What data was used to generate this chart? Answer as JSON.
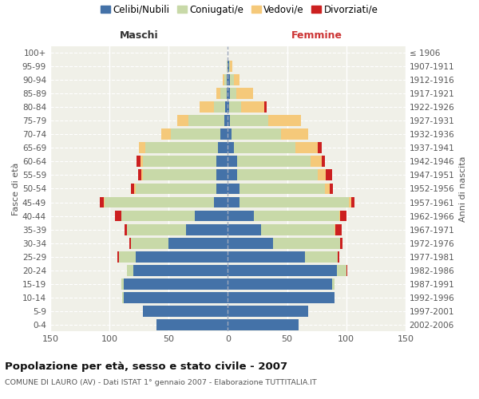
{
  "age_groups": [
    "100+",
    "95-99",
    "90-94",
    "85-89",
    "80-84",
    "75-79",
    "70-74",
    "65-69",
    "60-64",
    "55-59",
    "50-54",
    "45-49",
    "40-44",
    "35-39",
    "30-34",
    "25-29",
    "20-24",
    "15-19",
    "10-14",
    "5-9",
    "0-4"
  ],
  "birth_years": [
    "≤ 1906",
    "1907-1911",
    "1912-1916",
    "1917-1921",
    "1922-1926",
    "1927-1931",
    "1932-1936",
    "1937-1941",
    "1942-1946",
    "1947-1951",
    "1952-1956",
    "1957-1961",
    "1962-1966",
    "1967-1971",
    "1972-1976",
    "1977-1981",
    "1982-1986",
    "1987-1991",
    "1992-1996",
    "1997-2001",
    "2002-2006"
  ],
  "maschi": {
    "celibi": [
      0,
      0,
      1,
      1,
      2,
      3,
      6,
      8,
      10,
      10,
      10,
      12,
      28,
      35,
      50,
      78,
      80,
      88,
      88,
      72,
      60
    ],
    "coniugati": [
      0,
      1,
      2,
      5,
      10,
      30,
      42,
      62,
      62,
      62,
      68,
      92,
      62,
      50,
      32,
      14,
      5,
      2,
      1,
      0,
      0
    ],
    "vedovi": [
      0,
      0,
      1,
      4,
      12,
      10,
      8,
      5,
      2,
      1,
      1,
      1,
      0,
      0,
      0,
      0,
      0,
      0,
      0,
      0,
      0
    ],
    "divorziati": [
      0,
      0,
      0,
      0,
      0,
      0,
      0,
      0,
      3,
      3,
      3,
      3,
      5,
      2,
      1,
      1,
      0,
      0,
      0,
      0,
      0
    ]
  },
  "femmine": {
    "nubili": [
      0,
      1,
      2,
      2,
      1,
      2,
      3,
      5,
      8,
      8,
      10,
      10,
      22,
      28,
      38,
      65,
      92,
      88,
      90,
      68,
      60
    ],
    "coniugate": [
      0,
      1,
      3,
      5,
      10,
      32,
      42,
      52,
      62,
      68,
      72,
      92,
      72,
      62,
      57,
      28,
      8,
      2,
      0,
      0,
      0
    ],
    "vedove": [
      0,
      2,
      5,
      14,
      20,
      28,
      23,
      19,
      9,
      7,
      4,
      2,
      1,
      1,
      0,
      0,
      0,
      0,
      0,
      0,
      0
    ],
    "divorziate": [
      0,
      0,
      0,
      0,
      2,
      0,
      0,
      3,
      3,
      5,
      3,
      3,
      5,
      5,
      2,
      1,
      1,
      0,
      0,
      0,
      0
    ]
  },
  "colors": {
    "celibi": "#4472a8",
    "coniugati": "#c8d9a8",
    "vedovi": "#f5c97a",
    "divorziati": "#cc2020"
  },
  "xlim": 150,
  "title": "Popolazione per età, sesso e stato civile - 2007",
  "subtitle": "COMUNE DI LAURO (AV) - Dati ISTAT 1° gennaio 2007 - Elaborazione TUTTITALIA.IT",
  "ylabel_left": "Fasce di età",
  "ylabel_right": "Anni di nascita",
  "label_maschi": "Maschi",
  "label_femmine": "Femmine",
  "legend_labels": [
    "Celibi/Nubili",
    "Coniugati/e",
    "Vedovi/e",
    "Divorziati/e"
  ],
  "bg_color": "#f0f0e8",
  "bar_height": 0.82
}
